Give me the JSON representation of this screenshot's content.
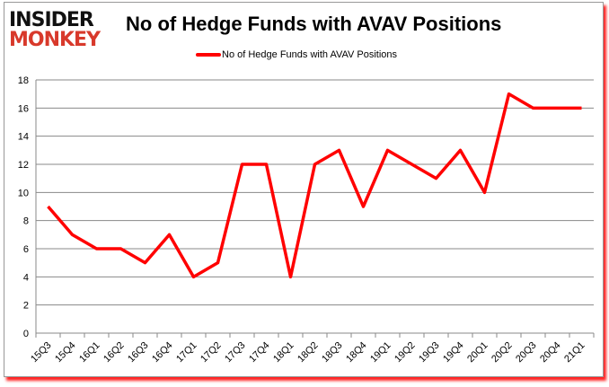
{
  "logo": {
    "line1": "INSIDER",
    "line2": "MONKEY"
  },
  "chart_data": {
    "type": "line",
    "title": "No of Hedge Funds with AVAV Positions",
    "categories": [
      "15Q3",
      "15Q4",
      "16Q1",
      "16Q2",
      "16Q3",
      "16Q4",
      "17Q1",
      "17Q2",
      "17Q3",
      "17Q4",
      "18Q1",
      "18Q2",
      "18Q3",
      "18Q4",
      "19Q1",
      "19Q2",
      "19Q3",
      "19Q4",
      "20Q1",
      "20Q2",
      "20Q3",
      "20Q4",
      "21Q1"
    ],
    "series": [
      {
        "name": "No of Hedge Funds with AVAV Positions",
        "values": [
          9,
          7,
          6,
          6,
          5,
          7,
          4,
          5,
          12,
          12,
          4,
          12,
          13,
          9,
          13,
          12,
          11,
          13,
          10,
          17,
          16,
          16,
          16
        ],
        "color": "#ff0000"
      }
    ],
    "ylim": [
      0,
      18
    ],
    "yticks": [
      0,
      2,
      4,
      6,
      8,
      10,
      12,
      14,
      16,
      18
    ],
    "grid": true,
    "legend": "top-center"
  }
}
